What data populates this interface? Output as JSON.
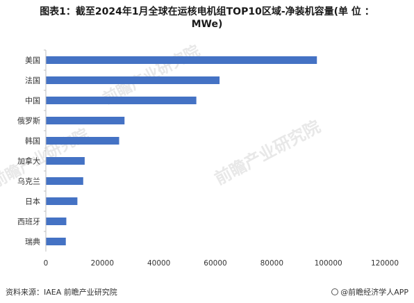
{
  "title": {
    "line1": "图表1：截至2024年1月全球在运核电机组TOP10区域-净装机容量(单 位 ：",
    "line2": "MWe)"
  },
  "footer": {
    "source": "资料来源：IAEA 前瞻产业研究院",
    "brand": "@前瞻经济学人APP"
  },
  "colors": {
    "bar": "#4472C4",
    "axis": "#bfbfbf",
    "text": "#333333"
  },
  "watermark": {
    "text": "前瞻产业研究院"
  },
  "chart_data": {
    "type": "bar",
    "orientation": "horizontal",
    "categories": [
      "美国",
      "法国",
      "中国",
      "俄罗斯",
      "韩国",
      "加拿大",
      "乌克兰",
      "日本",
      "西班牙",
      "瑞典"
    ],
    "values": [
      95835,
      61370,
      53150,
      27727,
      25825,
      13624,
      13107,
      11046,
      7123,
      6944
    ],
    "xlim": [
      0,
      120000
    ],
    "xticks": [
      0,
      20000,
      40000,
      60000,
      80000,
      100000,
      120000
    ],
    "xlabel": "",
    "ylabel": "",
    "grid": false,
    "legend": "none"
  }
}
